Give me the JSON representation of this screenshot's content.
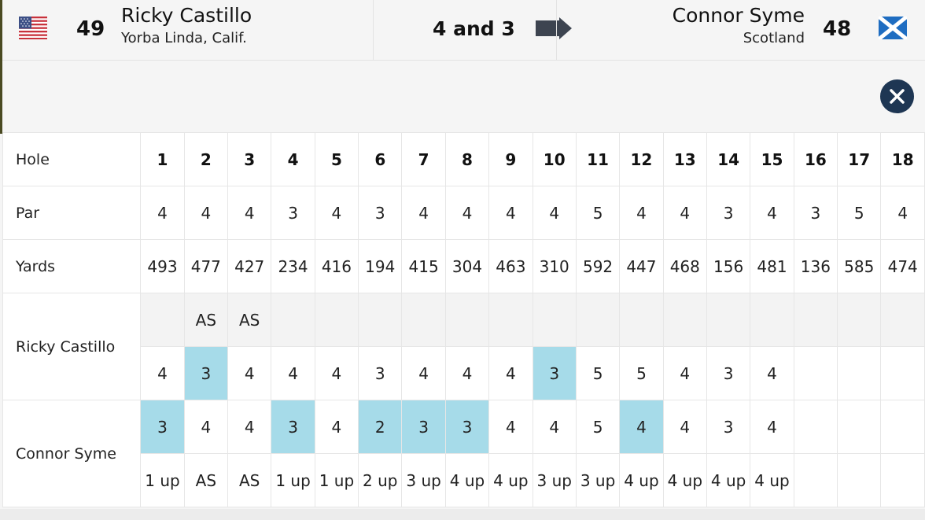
{
  "header": {
    "left_player": {
      "seed": "49",
      "name": "Ricky Castillo",
      "location": "Yorba Linda, Calif.",
      "flag": "usa-flag-icon"
    },
    "result": "4 and 3",
    "right_player": {
      "seed": "48",
      "name": "Connor Syme",
      "location": "Scotland",
      "flag": "scotland-flag-icon"
    },
    "winner_arrow": "arrow-right-icon"
  },
  "close_icon": "close-icon",
  "colors": {
    "win_highlight": "#a6dbe9",
    "close_button": "#1e3653"
  },
  "scorecard": {
    "hole_label": "Hole",
    "holes": [
      "1",
      "2",
      "3",
      "4",
      "5",
      "6",
      "7",
      "8",
      "9",
      "10",
      "11",
      "12",
      "13",
      "14",
      "15",
      "16",
      "17",
      "18"
    ],
    "par_label": "Par",
    "par": [
      "4",
      "4",
      "4",
      "3",
      "4",
      "3",
      "4",
      "4",
      "4",
      "4",
      "5",
      "4",
      "4",
      "3",
      "4",
      "3",
      "5",
      "4"
    ],
    "yards_label": "Yards",
    "yards": [
      "493",
      "477",
      "427",
      "234",
      "416",
      "194",
      "415",
      "304",
      "463",
      "310",
      "592",
      "447",
      "468",
      "156",
      "481",
      "136",
      "585",
      "474"
    ],
    "player1_label": "Ricky Castillo",
    "player1_status": [
      "",
      "AS",
      "AS",
      "",
      "",
      "",
      "",
      "",
      "",
      "",
      "",
      "",
      "",
      "",
      "",
      "",
      "",
      ""
    ],
    "player1_scores": [
      "4",
      "3",
      "4",
      "4",
      "4",
      "3",
      "4",
      "4",
      "4",
      "3",
      "5",
      "5",
      "4",
      "3",
      "4",
      "",
      "",
      ""
    ],
    "player1_wins": [
      false,
      true,
      false,
      false,
      false,
      false,
      false,
      false,
      false,
      true,
      false,
      false,
      false,
      false,
      false,
      false,
      false,
      false
    ],
    "player2_label": "Connor Syme",
    "player2_scores": [
      "3",
      "4",
      "4",
      "3",
      "4",
      "2",
      "3",
      "3",
      "4",
      "4",
      "5",
      "4",
      "4",
      "3",
      "4",
      "",
      "",
      ""
    ],
    "player2_wins": [
      true,
      false,
      false,
      true,
      false,
      true,
      true,
      true,
      false,
      false,
      false,
      true,
      false,
      false,
      false,
      false,
      false,
      false
    ],
    "player2_status": [
      "1 up",
      "AS",
      "AS",
      "1 up",
      "1 up",
      "2 up",
      "3 up",
      "4 up",
      "4 up",
      "3 up",
      "3 up",
      "4 up",
      "4 up",
      "4 up",
      "4 up",
      "",
      "",
      ""
    ]
  }
}
